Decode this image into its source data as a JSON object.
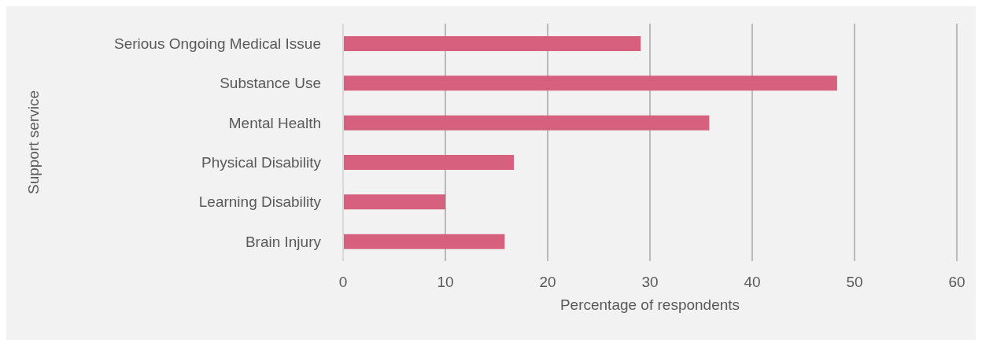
{
  "chart_data": {
    "type": "bar",
    "orientation": "horizontal",
    "categories": [
      "Serious Ongoing Medical Issue",
      "Substance Use",
      "Mental Health",
      "Physical Disability",
      "Learning Disability",
      "Brain Injury"
    ],
    "values": [
      29.1,
      48.3,
      35.8,
      16.7,
      10.0,
      15.8
    ],
    "color": "#d6607e",
    "xlabel": "Percentage of respondents",
    "ylabel": "Support service",
    "xlim": [
      0,
      60
    ],
    "xticks": [
      0,
      10,
      20,
      30,
      40,
      50,
      60
    ],
    "grid": "x"
  }
}
